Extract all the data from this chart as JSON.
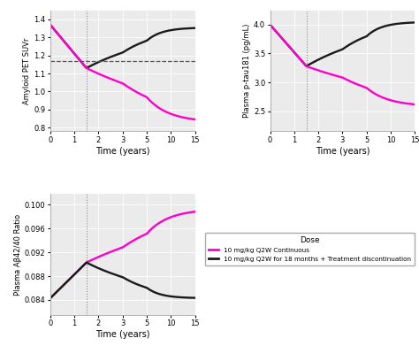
{
  "bg_color": "#ebebeb",
  "magenta": "#FF00CC",
  "black": "#1a1a1a",
  "dotted_x_pos": 1.5,
  "panel1": {
    "ylabel": "Amyloid PET SUVr",
    "xlabel": "Time (years)",
    "ylim": [
      0.78,
      1.45
    ],
    "yticks": [
      0.8,
      0.9,
      1.0,
      1.1,
      1.2,
      1.3,
      1.4
    ],
    "dashed_y": 1.17
  },
  "panel2": {
    "ylabel": "Plasma p-tau181 (pg/mL)",
    "xlabel": "Time (years)",
    "ylim": [
      2.15,
      4.25
    ],
    "yticks": [
      2.5,
      3.0,
      3.5,
      4.0
    ]
  },
  "panel3": {
    "ylabel": "Plasma Aβ42/40 Ratio",
    "xlabel": "Time (years)",
    "ylim": [
      0.0815,
      0.1018
    ],
    "yticks": [
      0.084,
      0.088,
      0.092,
      0.096,
      0.1
    ]
  },
  "xtick_labels": [
    "0",
    "1",
    "2",
    "3",
    "5",
    "10",
    "15"
  ],
  "xtick_values": [
    0,
    1,
    2,
    3,
    5,
    10,
    15
  ],
  "legend_labels": [
    "10 mg/kg Q2W Continuous",
    "10 mg/kg Q2W for 18 months + Treatment discontinuation"
  ],
  "legend_colors": [
    "#FF00CC",
    "#1a1a1a"
  ]
}
